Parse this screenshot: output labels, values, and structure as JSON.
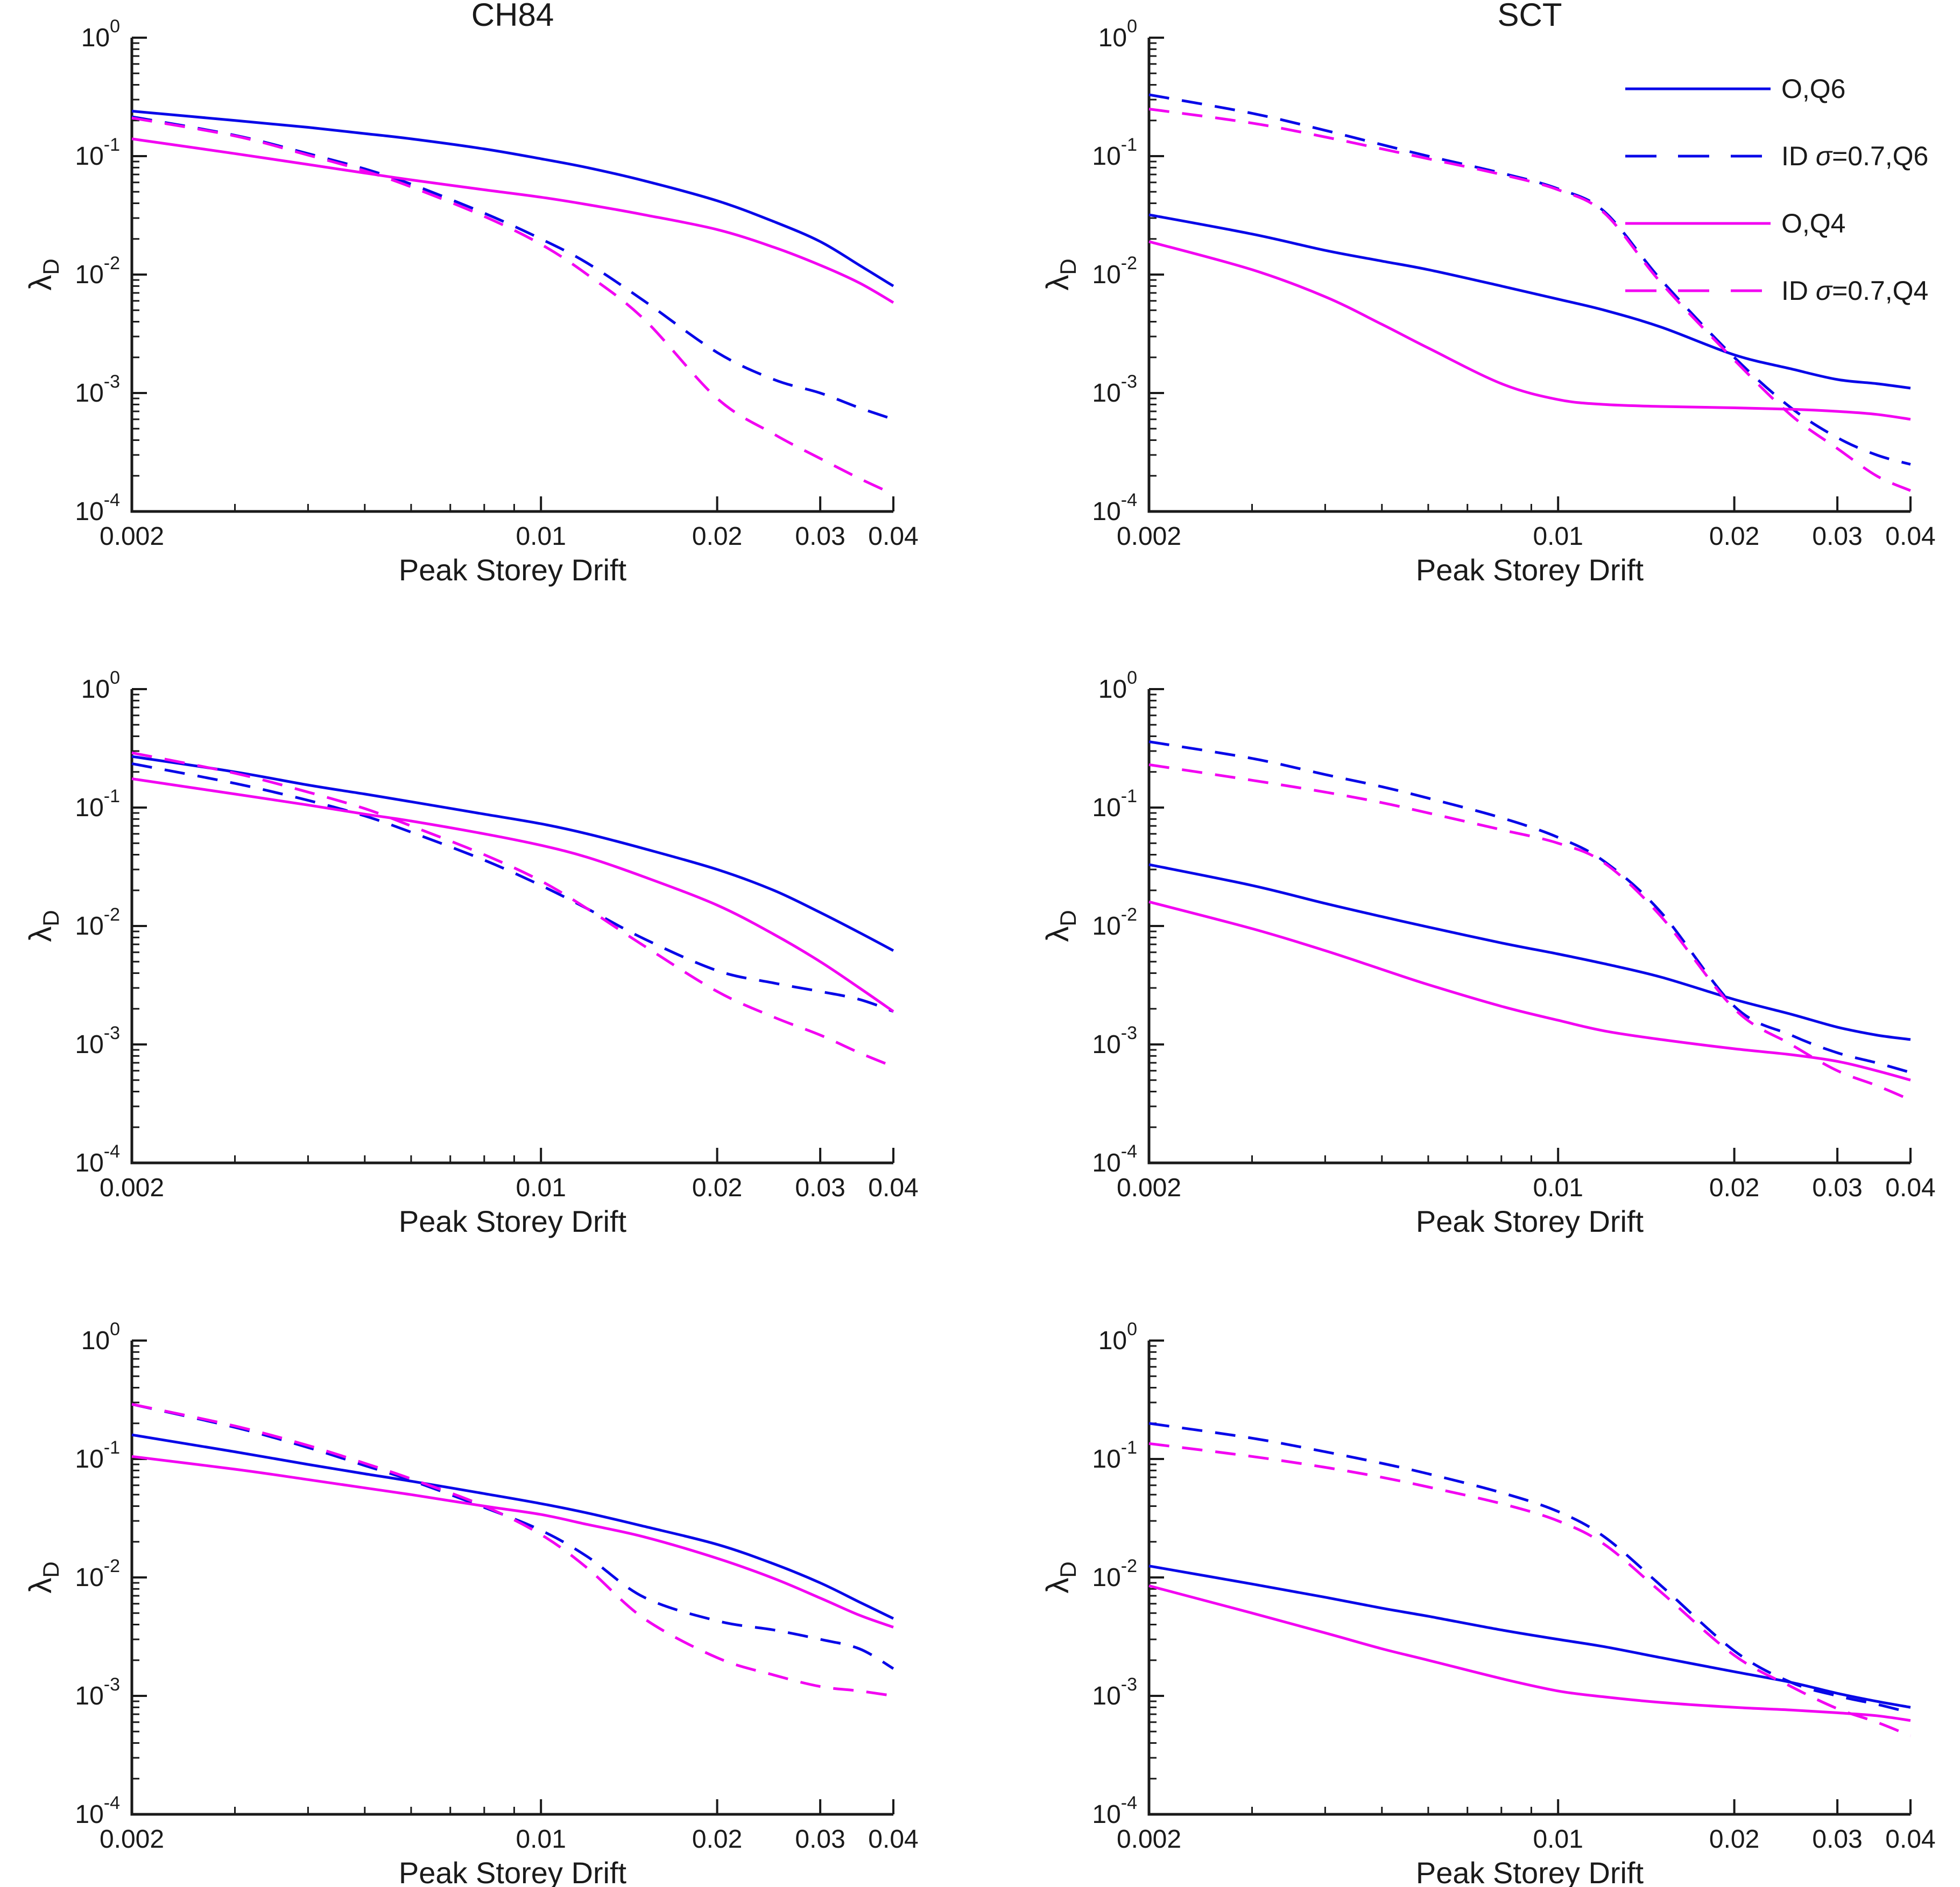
{
  "page": {
    "background": "#ffffff",
    "text_color": "#1a1a1a"
  },
  "colors": {
    "blue": "#0808e8",
    "magenta": "#f202f2",
    "axis": "#1a1a1a"
  },
  "chart_data": [
    {
      "type": "line",
      "title": "CH84",
      "xlabel": "Peak Storey Drift",
      "ylabel": "λ",
      "ylabel_subscript": "D",
      "xscale": "log",
      "yscale": "log",
      "xlim": [
        0.002,
        0.04
      ],
      "ylim": [
        0.0001,
        1
      ],
      "xticks": [
        0.002,
        0.01,
        0.02,
        0.03,
        0.04
      ],
      "xtick_labels": [
        "0.002",
        "0.01",
        "0.02",
        "0.03",
        "0.04"
      ],
      "ytick_exponents": [
        0,
        -1,
        -2,
        -3,
        -4
      ],
      "grid": false,
      "legend": false,
      "x": [
        0.002,
        0.003,
        0.004,
        0.005,
        0.006,
        0.008,
        0.01,
        0.012,
        0.015,
        0.02,
        0.025,
        0.03,
        0.035,
        0.04
      ],
      "series": [
        {
          "name": "O,Q6",
          "color": "blue",
          "dashed": false,
          "y": [
            0.24,
            0.2,
            0.175,
            0.155,
            0.14,
            0.115,
            0.095,
            0.08,
            0.062,
            0.042,
            0.028,
            0.019,
            0.012,
            0.008
          ]
        },
        {
          "name": "ID σ=0.7,Q6",
          "color": "blue",
          "dashed": true,
          "y": [
            0.215,
            0.15,
            0.105,
            0.078,
            0.058,
            0.033,
            0.02,
            0.0125,
            0.006,
            0.0022,
            0.0013,
            0.001,
            0.00075,
            0.0006
          ]
        },
        {
          "name": "O,Q4",
          "color": "magenta",
          "dashed": false,
          "y": [
            0.14,
            0.105,
            0.085,
            0.072,
            0.063,
            0.052,
            0.045,
            0.039,
            0.032,
            0.024,
            0.017,
            0.012,
            0.0085,
            0.0058
          ]
        },
        {
          "name": "ID σ=0.7,Q4",
          "color": "magenta",
          "dashed": true,
          "y": [
            0.21,
            0.148,
            0.102,
            0.075,
            0.055,
            0.031,
            0.018,
            0.01,
            0.0042,
            0.0009,
            0.00045,
            0.00028,
            0.00019,
            0.00014
          ]
        }
      ]
    },
    {
      "type": "line",
      "title": "SCT",
      "xlabel": "Peak Storey Drift",
      "ylabel": "λ",
      "ylabel_subscript": "D",
      "xscale": "log",
      "yscale": "log",
      "xlim": [
        0.002,
        0.04
      ],
      "ylim": [
        0.0001,
        1
      ],
      "xticks": [
        0.002,
        0.01,
        0.02,
        0.03,
        0.04
      ],
      "xtick_labels": [
        "0.002",
        "0.01",
        "0.02",
        "0.03",
        "0.04"
      ],
      "ytick_exponents": [
        0,
        -1,
        -2,
        -3,
        -4
      ],
      "grid": false,
      "legend": true,
      "x": [
        0.002,
        0.003,
        0.004,
        0.005,
        0.006,
        0.008,
        0.01,
        0.012,
        0.015,
        0.02,
        0.025,
        0.03,
        0.035,
        0.04
      ],
      "series": [
        {
          "name": "O,Q6",
          "color": "blue",
          "dashed": false,
          "y": [
            0.032,
            0.022,
            0.016,
            0.013,
            0.011,
            0.008,
            0.0062,
            0.005,
            0.0036,
            0.0021,
            0.0016,
            0.0013,
            0.0012,
            0.0011
          ]
        },
        {
          "name": "ID σ=0.7,Q6",
          "color": "blue",
          "dashed": true,
          "y": [
            0.33,
            0.23,
            0.165,
            0.125,
            0.1,
            0.072,
            0.053,
            0.034,
            0.009,
            0.002,
            0.00075,
            0.00042,
            0.0003,
            0.00025
          ]
        },
        {
          "name": "O,Q4",
          "color": "magenta",
          "dashed": false,
          "y": [
            0.019,
            0.011,
            0.0065,
            0.0038,
            0.0024,
            0.0012,
            0.00088,
            0.0008,
            0.00077,
            0.00075,
            0.00073,
            0.0007,
            0.00066,
            0.0006
          ]
        },
        {
          "name": "ID σ=0.7,Q4",
          "color": "magenta",
          "dashed": true,
          "y": [
            0.25,
            0.19,
            0.145,
            0.115,
            0.095,
            0.07,
            0.052,
            0.033,
            0.0085,
            0.0019,
            0.00065,
            0.00034,
            0.0002,
            0.00015
          ]
        }
      ]
    },
    {
      "type": "line",
      "title": "",
      "xlabel": "Peak Storey Drift",
      "ylabel": "λ",
      "ylabel_subscript": "D",
      "xscale": "log",
      "yscale": "log",
      "xlim": [
        0.002,
        0.04
      ],
      "ylim": [
        0.0001,
        1
      ],
      "xticks": [
        0.002,
        0.01,
        0.02,
        0.03,
        0.04
      ],
      "xtick_labels": [
        "0.002",
        "0.01",
        "0.02",
        "0.03",
        "0.04"
      ],
      "ytick_exponents": [
        0,
        -1,
        -2,
        -3,
        -4
      ],
      "grid": false,
      "legend": false,
      "x": [
        0.002,
        0.003,
        0.004,
        0.005,
        0.006,
        0.008,
        0.01,
        0.012,
        0.015,
        0.02,
        0.025,
        0.03,
        0.035,
        0.04
      ],
      "series": [
        {
          "name": "O,Q6",
          "color": "blue",
          "dashed": false,
          "y": [
            0.27,
            0.2,
            0.155,
            0.13,
            0.112,
            0.088,
            0.073,
            0.06,
            0.045,
            0.03,
            0.02,
            0.013,
            0.0088,
            0.0062
          ]
        },
        {
          "name": "ID σ=0.7,Q6",
          "color": "blue",
          "dashed": true,
          "y": [
            0.235,
            0.16,
            0.115,
            0.085,
            0.062,
            0.036,
            0.022,
            0.014,
            0.0078,
            0.0042,
            0.0033,
            0.0028,
            0.0024,
            0.0019
          ]
        },
        {
          "name": "O,Q4",
          "color": "magenta",
          "dashed": false,
          "y": [
            0.175,
            0.13,
            0.105,
            0.088,
            0.077,
            0.06,
            0.048,
            0.038,
            0.026,
            0.015,
            0.0085,
            0.005,
            0.003,
            0.0019
          ]
        },
        {
          "name": "ID σ=0.7,Q4",
          "color": "magenta",
          "dashed": true,
          "y": [
            0.29,
            0.195,
            0.135,
            0.098,
            0.07,
            0.04,
            0.024,
            0.014,
            0.0068,
            0.0028,
            0.0017,
            0.0012,
            0.00085,
            0.00065
          ]
        }
      ]
    },
    {
      "type": "line",
      "title": "",
      "xlabel": "Peak Storey Drift",
      "ylabel": "λ",
      "ylabel_subscript": "D",
      "xscale": "log",
      "yscale": "log",
      "xlim": [
        0.002,
        0.04
      ],
      "ylim": [
        0.0001,
        1
      ],
      "xticks": [
        0.002,
        0.01,
        0.02,
        0.03,
        0.04
      ],
      "xtick_labels": [
        "0.002",
        "0.01",
        "0.02",
        "0.03",
        "0.04"
      ],
      "ytick_exponents": [
        0,
        -1,
        -2,
        -3,
        -4
      ],
      "grid": false,
      "legend": false,
      "x": [
        0.002,
        0.003,
        0.004,
        0.005,
        0.006,
        0.008,
        0.01,
        0.012,
        0.015,
        0.02,
        0.025,
        0.03,
        0.035,
        0.04
      ],
      "series": [
        {
          "name": "O,Q6",
          "color": "blue",
          "dashed": false,
          "y": [
            0.033,
            0.022,
            0.0155,
            0.012,
            0.0098,
            0.0072,
            0.0058,
            0.0048,
            0.0037,
            0.0024,
            0.0018,
            0.0014,
            0.0012,
            0.0011
          ]
        },
        {
          "name": "ID σ=0.7,Q6",
          "color": "blue",
          "dashed": true,
          "y": [
            0.36,
            0.26,
            0.19,
            0.15,
            0.12,
            0.082,
            0.056,
            0.035,
            0.013,
            0.0021,
            0.0012,
            0.00085,
            0.0007,
            0.00058
          ]
        },
        {
          "name": "O,Q4",
          "color": "magenta",
          "dashed": false,
          "y": [
            0.016,
            0.0095,
            0.0062,
            0.0043,
            0.0032,
            0.0021,
            0.0016,
            0.0013,
            0.0011,
            0.00092,
            0.00082,
            0.00072,
            0.0006,
            0.0005
          ]
        },
        {
          "name": "ID σ=0.7,Q4",
          "color": "magenta",
          "dashed": true,
          "y": [
            0.23,
            0.17,
            0.135,
            0.11,
            0.09,
            0.065,
            0.05,
            0.034,
            0.012,
            0.002,
            0.001,
            0.0006,
            0.00045,
            0.00034
          ]
        }
      ]
    },
    {
      "type": "line",
      "title": "",
      "xlabel": "Peak Storey Drift",
      "ylabel": "λ",
      "ylabel_subscript": "D",
      "xscale": "log",
      "yscale": "log",
      "xlim": [
        0.002,
        0.04
      ],
      "ylim": [
        0.0001,
        1
      ],
      "xticks": [
        0.002,
        0.01,
        0.02,
        0.03,
        0.04
      ],
      "xtick_labels": [
        "0.002",
        "0.01",
        "0.02",
        "0.03",
        "0.04"
      ],
      "ytick_exponents": [
        0,
        -1,
        -2,
        -3,
        -4
      ],
      "grid": false,
      "legend": false,
      "x": [
        0.002,
        0.003,
        0.004,
        0.005,
        0.006,
        0.008,
        0.01,
        0.012,
        0.015,
        0.02,
        0.025,
        0.03,
        0.035,
        0.04
      ],
      "series": [
        {
          "name": "O,Q6",
          "color": "blue",
          "dashed": false,
          "y": [
            0.16,
            0.115,
            0.09,
            0.075,
            0.065,
            0.051,
            0.042,
            0.035,
            0.027,
            0.019,
            0.013,
            0.009,
            0.0062,
            0.0045
          ]
        },
        {
          "name": "ID σ=0.7,Q6",
          "color": "blue",
          "dashed": true,
          "y": [
            0.29,
            0.185,
            0.125,
            0.088,
            0.066,
            0.039,
            0.025,
            0.015,
            0.0068,
            0.0043,
            0.0036,
            0.003,
            0.0025,
            0.0017
          ]
        },
        {
          "name": "O,Q4",
          "color": "magenta",
          "dashed": false,
          "y": [
            0.105,
            0.082,
            0.067,
            0.057,
            0.05,
            0.04,
            0.034,
            0.028,
            0.022,
            0.0145,
            0.0098,
            0.0067,
            0.0048,
            0.0038
          ]
        },
        {
          "name": "ID σ=0.7,Q4",
          "color": "magenta",
          "dashed": true,
          "y": [
            0.29,
            0.19,
            0.13,
            0.092,
            0.068,
            0.04,
            0.023,
            0.012,
            0.0045,
            0.0021,
            0.0015,
            0.0012,
            0.0011,
            0.001
          ]
        }
      ]
    },
    {
      "type": "line",
      "title": "",
      "xlabel": "Peak Storey Drift",
      "ylabel": "λ",
      "ylabel_subscript": "D",
      "xscale": "log",
      "yscale": "log",
      "xlim": [
        0.002,
        0.04
      ],
      "ylim": [
        0.0001,
        1
      ],
      "xticks": [
        0.002,
        0.01,
        0.02,
        0.03,
        0.04
      ],
      "xtick_labels": [
        "0.002",
        "0.01",
        "0.02",
        "0.03",
        "0.04"
      ],
      "ytick_exponents": [
        0,
        -1,
        -2,
        -3,
        -4
      ],
      "grid": false,
      "legend": false,
      "x": [
        0.002,
        0.003,
        0.004,
        0.005,
        0.006,
        0.008,
        0.01,
        0.012,
        0.015,
        0.02,
        0.025,
        0.03,
        0.035,
        0.04
      ],
      "series": [
        {
          "name": "O,Q6",
          "color": "blue",
          "dashed": false,
          "y": [
            0.0125,
            0.0088,
            0.0068,
            0.0055,
            0.0047,
            0.0036,
            0.003,
            0.0026,
            0.0021,
            0.0016,
            0.0013,
            0.00105,
            0.0009,
            0.0008
          ]
        },
        {
          "name": "ID σ=0.7,Q6",
          "color": "blue",
          "dashed": true,
          "y": [
            0.2,
            0.15,
            0.115,
            0.092,
            0.075,
            0.052,
            0.036,
            0.022,
            0.0085,
            0.0024,
            0.0013,
            0.001,
            0.00085,
            0.00072
          ]
        },
        {
          "name": "O,Q4",
          "color": "magenta",
          "dashed": false,
          "y": [
            0.0085,
            0.005,
            0.0034,
            0.0025,
            0.002,
            0.0014,
            0.0011,
            0.00098,
            0.00088,
            0.0008,
            0.00076,
            0.00072,
            0.00068,
            0.00062
          ]
        },
        {
          "name": "ID σ=0.7,Q4",
          "color": "magenta",
          "dashed": true,
          "y": [
            0.135,
            0.105,
            0.085,
            0.07,
            0.058,
            0.042,
            0.03,
            0.019,
            0.0075,
            0.0022,
            0.0012,
            0.00078,
            0.0006,
            0.00046
          ]
        }
      ]
    }
  ]
}
